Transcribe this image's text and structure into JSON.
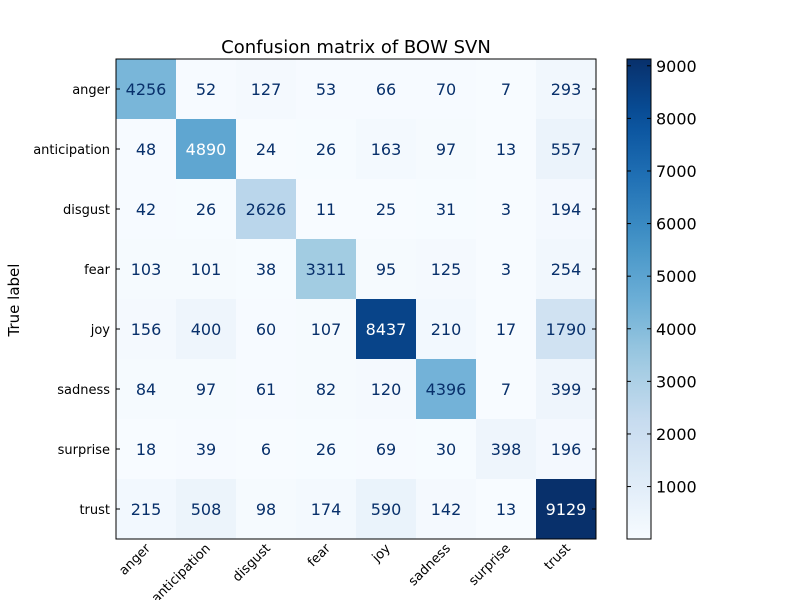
{
  "chart_data": {
    "type": "heatmap",
    "title": "Confusion matrix of BOW SVN",
    "ylabel": "True label",
    "xlabel": "",
    "categories": [
      "anger",
      "anticipation",
      "disgust",
      "fear",
      "joy",
      "sadness",
      "surprise",
      "trust"
    ],
    "x_tick_labels": [
      "anger",
      "anticipation",
      "disgust",
      "fear",
      "joy",
      "sadness",
      "surprise",
      "trust"
    ],
    "y_tick_labels": [
      "anger",
      "anticipation",
      "disgust",
      "fear",
      "joy",
      "sadness",
      "surprise",
      "trust"
    ],
    "matrix": [
      [
        4256,
        52,
        127,
        53,
        66,
        70,
        7,
        293
      ],
      [
        48,
        4890,
        24,
        26,
        163,
        97,
        13,
        557
      ],
      [
        42,
        26,
        2626,
        11,
        25,
        31,
        3,
        194
      ],
      [
        103,
        101,
        38,
        3311,
        95,
        125,
        3,
        254
      ],
      [
        156,
        400,
        60,
        107,
        8437,
        210,
        17,
        1790
      ],
      [
        84,
        97,
        61,
        82,
        120,
        4396,
        7,
        399
      ],
      [
        18,
        39,
        6,
        26,
        69,
        30,
        398,
        196
      ],
      [
        215,
        508,
        98,
        174,
        590,
        142,
        13,
        9129
      ]
    ],
    "colormap": "Blues",
    "vmin": 3,
    "vmax": 9129,
    "colorbar_ticks": [
      1000,
      2000,
      3000,
      4000,
      5000,
      6000,
      7000,
      8000,
      9000
    ],
    "text_color_light": "#ffffff",
    "text_color_dark": "#08306b",
    "grid": false
  }
}
